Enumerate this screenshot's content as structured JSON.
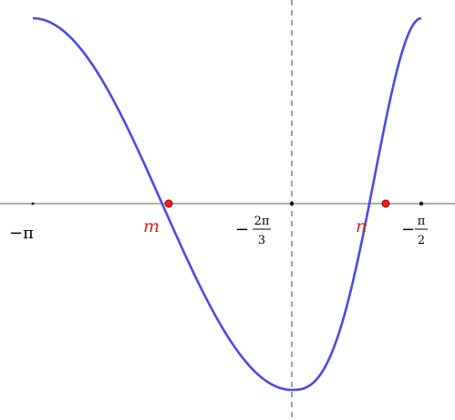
{
  "colors": {
    "curve": "#4a4ae8",
    "axis": "#808080",
    "point_fill": "#e82020",
    "point_stroke": "#a00000",
    "label": "#dd1e1e",
    "text": "#000000",
    "dashed_line": "#888888"
  },
  "axis": {
    "ticks": [
      {
        "id": "minus-pi",
        "label": "−π"
      },
      {
        "id": "minus-2pi-over-3",
        "sign": "−",
        "num": "2π",
        "den": "3"
      },
      {
        "id": "minus-pi-over-2",
        "sign": "−",
        "num": "π",
        "den": "2"
      }
    ]
  },
  "points": [
    {
      "id": "m",
      "label": "m"
    },
    {
      "id": "n",
      "label": "n"
    }
  ]
}
